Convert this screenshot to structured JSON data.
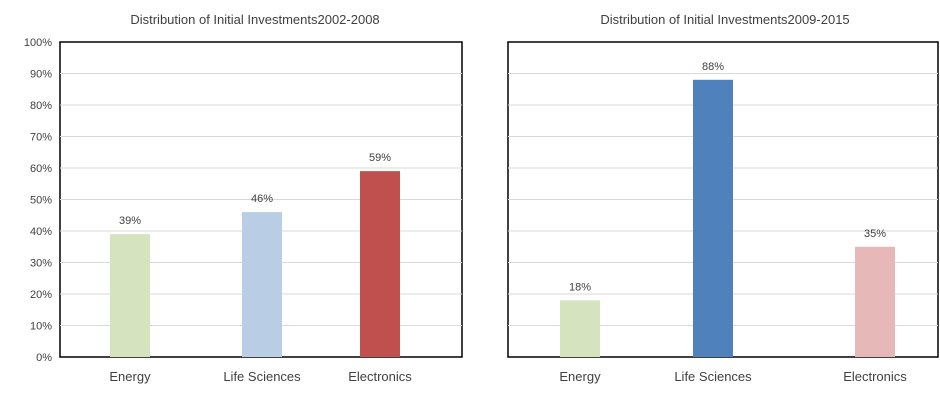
{
  "chart_data": [
    {
      "type": "bar",
      "title": "Distribution of Initial Investments2002-2008",
      "xlabel": "",
      "ylabel": "",
      "ylim": [
        0,
        100
      ],
      "y_ticks": [
        "0%",
        "10%",
        "20%",
        "30%",
        "40%",
        "50%",
        "60%",
        "70%",
        "80%",
        "90%",
        "100%"
      ],
      "grid": true,
      "categories": [
        "Energy",
        "Life Sciences",
        "Electronics"
      ],
      "values": [
        39,
        46,
        59
      ],
      "data_labels": [
        "39%",
        "46%",
        "59%"
      ],
      "colors": [
        "#d6e3bf",
        "#b9cde5",
        "#c0504d"
      ]
    },
    {
      "type": "bar",
      "title": "Distribution of Initial Investments2009-2015",
      "xlabel": "",
      "ylabel": "",
      "ylim": [
        0,
        100
      ],
      "grid": true,
      "categories": [
        "Energy",
        "Life Sciences",
        "Electronics"
      ],
      "values": [
        18,
        88,
        35
      ],
      "data_labels": [
        "18%",
        "88%",
        "35%"
      ],
      "colors": [
        "#d6e3bf",
        "#4f81bd",
        "#e6b9b8"
      ]
    }
  ]
}
